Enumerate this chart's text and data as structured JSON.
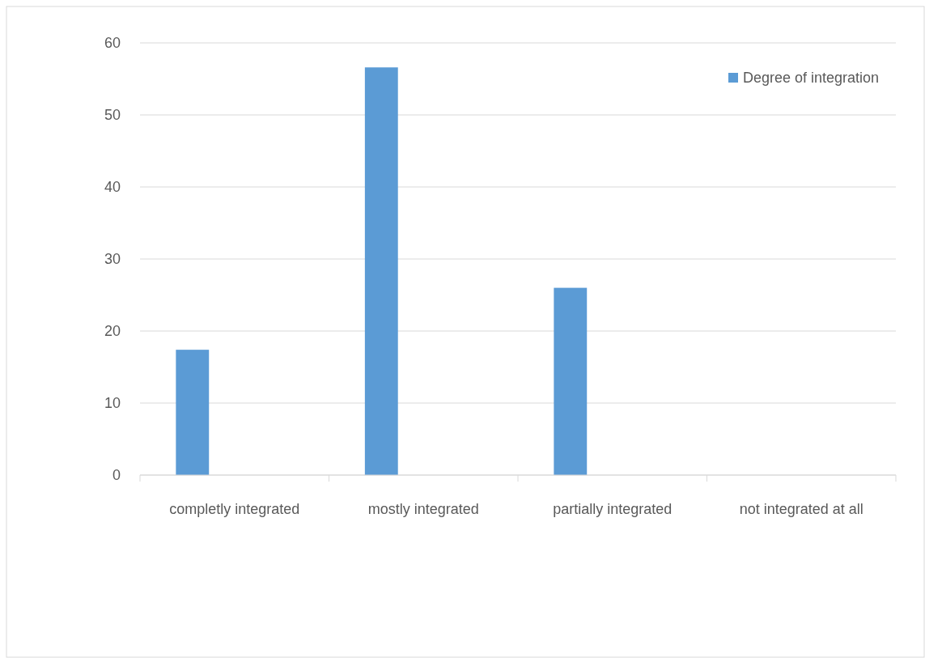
{
  "chart_data": {
    "type": "bar",
    "categories": [
      "completly integrated",
      "mostly integrated",
      "partially integrated",
      "not integrated at all"
    ],
    "series": [
      {
        "name": "Degree of integration",
        "color": "#5b9bd5",
        "values": [
          17.4,
          56.6,
          26,
          0
        ]
      }
    ],
    "ylim": [
      0,
      60
    ],
    "yticks": [
      0,
      10,
      20,
      30,
      40,
      50,
      60
    ],
    "grid": "y",
    "legend": "top right"
  }
}
